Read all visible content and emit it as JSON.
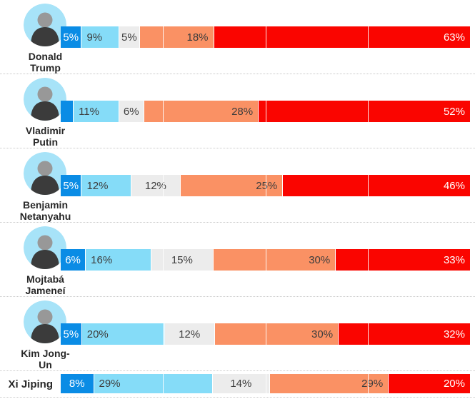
{
  "colors": {
    "dark_blue": "#0a8ce5",
    "light_blue": "#85dcf8",
    "gray": "#ececec",
    "orange": "#fa9164",
    "red": "#fa0500",
    "label_dark_text": "#3d3d3d",
    "label_light_text": "#ffffff",
    "name_text": "#282828",
    "avatar_background": "#a7e3f8",
    "separator_dots": "#c9c9c9"
  },
  "segments": [
    {
      "key": "dark-blue",
      "color": "#0a8ce5",
      "text_color": "#ffffff",
      "align": "center"
    },
    {
      "key": "light-blue",
      "color": "#85dcf8",
      "text_color": "#3d3d3d",
      "align": "left"
    },
    {
      "key": "gray",
      "color": "#ececec",
      "text_color": "#3d3d3d",
      "align": "center"
    },
    {
      "key": "orange",
      "color": "#fa9164",
      "text_color": "#3d3d3d",
      "align": "right"
    },
    {
      "key": "red",
      "color": "#fa0500",
      "text_color": "#ffffff",
      "align": "right"
    }
  ],
  "chart_data": {
    "type": "bar",
    "orientation": "horizontal-stacked",
    "unit": "%",
    "xlim": [
      0,
      100
    ],
    "gridlines_percent": [
      25,
      50,
      75
    ],
    "legend": "none-visible",
    "categories": [
      "Donald Trump",
      "Vladimir Putin",
      "Benjamin Netanyahu",
      "Mojtabá Jameneí",
      "Kim Jong-Un",
      "Xi Jiping"
    ],
    "series": [
      {
        "name": "dark_blue",
        "color": "#0a8ce5",
        "values": [
          5,
          3,
          5,
          6,
          5,
          8
        ]
      },
      {
        "name": "light_blue",
        "color": "#85dcf8",
        "values": [
          9,
          11,
          12,
          16,
          20,
          29
        ]
      },
      {
        "name": "gray",
        "color": "#ececec",
        "values": [
          5,
          6,
          12,
          15,
          12,
          14
        ]
      },
      {
        "name": "orange",
        "color": "#fa9164",
        "values": [
          18,
          28,
          25,
          30,
          30,
          29
        ]
      },
      {
        "name": "red",
        "color": "#fa0500",
        "values": [
          63,
          52,
          46,
          33,
          32,
          20
        ]
      }
    ],
    "rows": [
      {
        "name_lines": [
          "Donald",
          "Trump"
        ],
        "values": [
          5,
          9,
          5,
          18,
          63
        ],
        "labels": [
          "5%",
          "9%",
          "5%",
          "18%",
          "63%"
        ],
        "has_avatar": true,
        "compact": false
      },
      {
        "name_lines": [
          "Vladimir",
          "Putin"
        ],
        "values": [
          3,
          11,
          6,
          28,
          52
        ],
        "labels": [
          "",
          "11%",
          "6%",
          "28%",
          "52%"
        ],
        "has_avatar": true,
        "compact": false
      },
      {
        "name_lines": [
          "Benjamin",
          "Netanyahu"
        ],
        "values": [
          5,
          12,
          12,
          25,
          46
        ],
        "labels": [
          "5%",
          "12%",
          "12%",
          "25%",
          "46%"
        ],
        "has_avatar": true,
        "compact": false
      },
      {
        "name_lines": [
          "Mojtabá",
          "Jameneí"
        ],
        "values": [
          6,
          16,
          15,
          30,
          33
        ],
        "labels": [
          "6%",
          "16%",
          "15%",
          "30%",
          "33%"
        ],
        "has_avatar": true,
        "compact": false
      },
      {
        "name_lines": [
          "Kim Jong-",
          "Un"
        ],
        "values": [
          5,
          20,
          12,
          30,
          32
        ],
        "labels": [
          "5%",
          "20%",
          "12%",
          "30%",
          "32%"
        ],
        "has_avatar": true,
        "compact": false
      },
      {
        "name_lines": [
          "Xi Jiping"
        ],
        "values": [
          8,
          29,
          14,
          29,
          20
        ],
        "labels": [
          "8%",
          "29%",
          "14%",
          "29%",
          "20%"
        ],
        "has_avatar": false,
        "compact": true
      }
    ]
  }
}
